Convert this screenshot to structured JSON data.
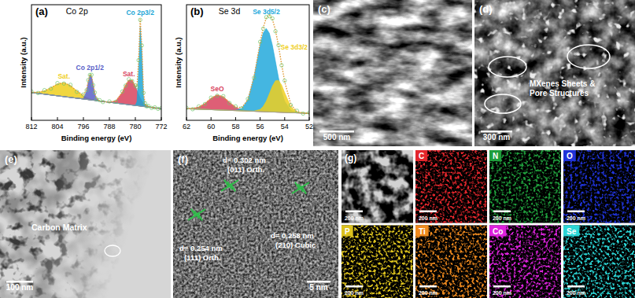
{
  "chart_data": [
    {
      "panel": "(a)",
      "type": "line",
      "title": "Co 2p",
      "x_label": "Binding energy (eV)",
      "y_label": "Intensity (a.u.)",
      "xlim": [
        812,
        772
      ],
      "xticks": [
        812,
        804,
        796,
        788,
        780,
        772
      ],
      "ylim": [
        0,
        100
      ],
      "tick_labels": "x",
      "grid": false,
      "x": [
        812,
        810,
        808,
        806,
        804,
        802,
        800,
        798,
        796,
        795,
        794.5,
        794,
        793.5,
        793,
        792.5,
        792,
        791,
        790,
        788,
        786,
        784,
        783,
        782,
        781,
        780,
        779.5,
        779,
        778.5,
        778,
        777.5,
        777,
        776.5,
        776,
        775,
        774,
        773,
        772
      ],
      "series": [
        {
          "type": "scatter",
          "marker": "circle",
          "color": "#6cc36a",
          "values": [
            24.9,
            23.6,
            26.1,
            27.4,
            32.2,
            31.8,
            30.7,
            24.6,
            22.3,
            26.1,
            34.8,
            39.2,
            39.4,
            30.5,
            24.1,
            18.4,
            17.4,
            15.8,
            16.3,
            16.1,
            24.9,
            30,
            35.5,
            33.9,
            30.2,
            28.8,
            52,
            86.9,
            64.8,
            23.8,
            14.8,
            12.1,
            12.4,
            10.7,
            11.2,
            9.9,
            10.5
          ]
        },
        {
          "type": "line",
          "line_style": "dotted",
          "color": "#e39a34",
          "values": [
            24.2,
            24.2,
            25.4,
            28.1,
            31.4,
            32.5,
            30,
            25.3,
            21.7,
            26.8,
            34.1,
            39.9,
            38.6,
            31.1,
            23.4,
            19,
            16.8,
            16.3,
            15.7,
            16.7,
            24.3,
            30.5,
            34.8,
            34.5,
            29.5,
            29.5,
            51.3,
            87.7,
            64.1,
            24.4,
            14.2,
            12.6,
            11.9,
            11.2,
            10.7,
            10.4,
            10
          ]
        },
        {
          "type": "baseline",
          "line_style": "solid",
          "color": "#9a9a9a",
          "values": [
            24,
            23.3,
            22.6,
            21.9,
            21.2,
            20.5,
            19.8,
            19.1,
            18.4,
            18.1,
            17.9,
            17.7,
            17.5,
            17.4,
            17.2,
            17,
            16.7,
            16.3,
            15.6,
            14.9,
            14.2,
            13.9,
            13.5,
            13.2,
            12.8,
            12.6,
            12.5,
            12.3,
            12.1,
            11.9,
            11.8,
            11.6,
            11.4,
            11.1,
            10.7,
            10.4,
            10
          ]
        },
        {
          "name": "Sat.",
          "type": "area",
          "color": "#efcf1e",
          "values": [
            0.2,
            0.9,
            2.8,
            6.2,
            10.2,
            12,
            10.2,
            6.2,
            2.8,
            1.6,
            1.2,
            0.9,
            0.6,
            0.4,
            0.3,
            0.2,
            0.1,
            0,
            0,
            0,
            0,
            0,
            0,
            0,
            0,
            0,
            0,
            0,
            0,
            0,
            0,
            0,
            0,
            0,
            0,
            0,
            0
          ]
        },
        {
          "name": "Co 2p1/2",
          "type": "area",
          "color": "#5a5fc8",
          "values": [
            0,
            0,
            0,
            0,
            0,
            0,
            0,
            0,
            0.5,
            7.1,
            15,
            21.3,
            20.5,
            13.3,
            5.9,
            1.8,
            0,
            0,
            0,
            0,
            0,
            0,
            0,
            0,
            0,
            0,
            0,
            0,
            0,
            0,
            0,
            0,
            0,
            0,
            0,
            0,
            0
          ]
        },
        {
          "name": "Sat.",
          "type": "area",
          "color": "#d8435e",
          "values": [
            0,
            0,
            0,
            0,
            0,
            0,
            0,
            0,
            0,
            0,
            0,
            0,
            0,
            0,
            0,
            0,
            0,
            0,
            0.1,
            1.8,
            10.1,
            16.6,
            21.3,
            21.3,
            16.6,
            13.4,
            10.1,
            7.1,
            4.8,
            3,
            1.8,
            1,
            0.5,
            0.1,
            0,
            0,
            0
          ]
        },
        {
          "name": "Co 2p3/2",
          "type": "area",
          "color": "#1ea6d6",
          "values": [
            0,
            0,
            0,
            0,
            0,
            0,
            0,
            0,
            0,
            0,
            0,
            0,
            0,
            0,
            0,
            0,
            0,
            0,
            0,
            0,
            0,
            0,
            0,
            0,
            0.1,
            3.5,
            28.7,
            68.3,
            47.2,
            9.5,
            0.6,
            0,
            0,
            0,
            0,
            0,
            0
          ]
        }
      ]
    },
    {
      "panel": "(b)",
      "type": "line",
      "title": "Se 3d",
      "x_label": "Binding energy (eV)",
      "y_label": "Intensity (a.u.)",
      "xlim": [
        62,
        52
      ],
      "xticks": [
        62,
        60,
        58,
        56,
        54,
        52
      ],
      "ylim": [
        0,
        100
      ],
      "tick_labels": "x",
      "grid": false,
      "x": [
        62,
        61.5,
        61,
        60.5,
        60,
        59.5,
        59,
        58.5,
        58,
        57.5,
        57,
        56.5,
        56,
        55.75,
        55.5,
        55.25,
        55,
        54.75,
        54.5,
        54.25,
        54,
        53.5,
        53,
        52.5,
        52
      ],
      "series": [
        {
          "type": "scatter",
          "marker": "circle",
          "color": "#6cc36a",
          "values": [
            10.8,
            9.6,
            12,
            14,
            19.6,
            21.3,
            20.9,
            15,
            12.1,
            10.4,
            18.5,
            36.8,
            67.9,
            79.3,
            89.2,
            90.1,
            88.1,
            77,
            65,
            47.6,
            34.3,
            13.1,
            8.2,
            5.8,
            6.6
          ]
        },
        {
          "type": "line",
          "line_style": "dotted",
          "color": "#e39a34",
          "values": [
            10.1,
            10.2,
            11.4,
            14.5,
            19,
            21.9,
            20.3,
            15.5,
            11.5,
            11,
            17.8,
            37.6,
            67.1,
            80.1,
            88.5,
            91,
            87.3,
            77.9,
            64.2,
            48.4,
            33.5,
            13.8,
            7.5,
            6.3,
            6
          ]
        },
        {
          "type": "baseline",
          "line_style": "solid",
          "color": "#9a9a9a",
          "values": [
            10,
            9.8,
            9.6,
            9.4,
            9.2,
            9,
            8.8,
            8.6,
            8.4,
            8.2,
            8,
            7.8,
            7.6,
            7.5,
            7.4,
            7.3,
            7.2,
            7.1,
            7,
            6.9,
            6.8,
            6.6,
            6.4,
            6.2,
            6
          ]
        },
        {
          "name": "SeO",
          "type": "area",
          "color": "#d8435e",
          "values": [
            0.1,
            0.4,
            1.8,
            5.1,
            9.8,
            12.9,
            11.5,
            6.9,
            2.8,
            0.8,
            0.1,
            0,
            0,
            0,
            0,
            0,
            0,
            0,
            0,
            0,
            0,
            0,
            0,
            0,
            0
          ]
        },
        {
          "name": "Se 3d5/2",
          "type": "area",
          "color": "#23a9dc",
          "values": [
            0,
            0,
            0,
            0,
            0,
            0,
            0,
            0,
            0.3,
            2,
            9.7,
            29.6,
            57.7,
            68.1,
            72,
            68.1,
            57.7,
            43.7,
            29.6,
            17.9,
            9.7,
            2,
            0.3,
            0,
            0
          ]
        },
        {
          "name": "Se 3d3/2",
          "type": "area",
          "color": "#efcf1e",
          "values": [
            0,
            0,
            0,
            0,
            0,
            0,
            0,
            0,
            0,
            0,
            0,
            0.2,
            1.8,
            4.5,
            9.1,
            15.6,
            22.4,
            27.1,
            27.6,
            23.6,
            17,
            5.2,
            0.8,
            0.1,
            0
          ]
        }
      ]
    }
  ],
  "panels": [
    {
      "label": "(c)",
      "kind": "sem",
      "scale_bar": "500 nm"
    },
    {
      "label": "(d)",
      "kind": "sem-pores",
      "annotation": [
        "MXenes Sheets &",
        "Pore Structures"
      ],
      "scale_bar": "300 nm"
    },
    {
      "label": "(e)",
      "kind": "tem",
      "annotation": "Carbon Matrix",
      "scale_bar": "100 nm"
    },
    {
      "label": "(f)",
      "kind": "hrtem",
      "scale_bar": "5 nm",
      "fringes": [
        {
          "spacing": "d= 0.302 nm",
          "plane": "(011) Orth."
        },
        {
          "spacing": "d= 0.254 nm",
          "plane": "(111) Orth."
        },
        {
          "spacing": "d= 0.258 nm",
          "plane": "(210) Cubic"
        }
      ]
    },
    {
      "label": "(g)",
      "kind": "eds",
      "maps": [
        {
          "color": "#d2d2d2",
          "scale_bar": "200 nm"
        },
        {
          "element": "C",
          "color": "#e3262c",
          "scale_bar": "200 nm"
        },
        {
          "element": "N",
          "color": "#1f9e3c",
          "scale_bar": "200 nm"
        },
        {
          "element": "O",
          "color": "#1f33d8",
          "scale_bar": "200 nm"
        },
        {
          "element": "P",
          "color": "#dcc21e",
          "scale_bar": "200 nm"
        },
        {
          "element": "Ti",
          "color": "#ef8a1e",
          "scale_bar": "200 nm"
        },
        {
          "element": "Co",
          "color": "#dc22dc",
          "scale_bar": "200 nm"
        },
        {
          "element": "Se",
          "color": "#2bd5d5",
          "scale_bar": "200 nm"
        }
      ]
    }
  ]
}
